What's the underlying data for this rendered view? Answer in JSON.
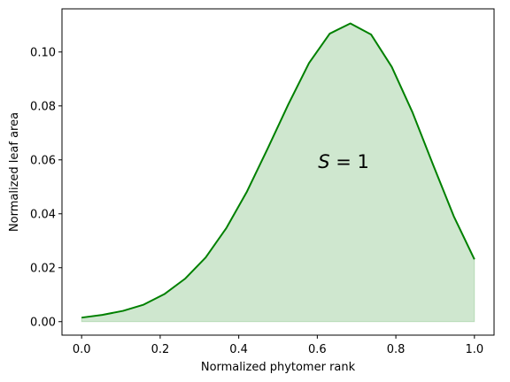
{
  "chart_data": {
    "type": "area",
    "xlabel": "Normalized phytomer rank",
    "ylabel": "Normalized leaf area",
    "xlim": [
      -0.05,
      1.05
    ],
    "ylim": [
      -0.005,
      0.116
    ],
    "xticks": [
      "0.0",
      "0.2",
      "0.4",
      "0.6",
      "0.8",
      "1.0"
    ],
    "xtick_values": [
      0.0,
      0.2,
      0.4,
      0.6,
      0.8,
      1.0
    ],
    "yticks": [
      "0.00",
      "0.02",
      "0.04",
      "0.06",
      "0.08",
      "0.10"
    ],
    "ytick_values": [
      0.0,
      0.02,
      0.04,
      0.06,
      0.08,
      0.1
    ],
    "grid": false,
    "line_color": "#008000",
    "fill_color": "#008000",
    "fill_opacity": 0.19,
    "annotation": {
      "var": "S",
      "rest": " = 1",
      "x": 0.667,
      "y": 0.057
    },
    "series": [
      {
        "x": [
          0.0,
          0.0526,
          0.1053,
          0.1579,
          0.2105,
          0.2632,
          0.3158,
          0.3684,
          0.4211,
          0.4737,
          0.5263,
          0.5789,
          0.6316,
          0.6842,
          0.7368,
          0.7895,
          0.8421,
          0.8947,
          0.9474,
          1.0
        ],
        "values": [
          0.0015,
          0.0025,
          0.004,
          0.0063,
          0.0102,
          0.0159,
          0.0238,
          0.0347,
          0.0483,
          0.0642,
          0.0806,
          0.0959,
          0.1068,
          0.1106,
          0.1065,
          0.0945,
          0.0777,
          0.0582,
          0.0391,
          0.0231
        ]
      }
    ]
  }
}
